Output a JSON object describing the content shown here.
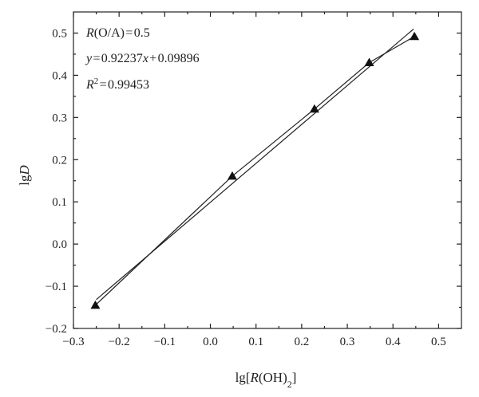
{
  "chart_data": {
    "type": "scatter",
    "xlabel": "lg[R(OH)2]",
    "ylabel": "lgD",
    "xlim": [
      -0.3,
      0.55
    ],
    "ylim": [
      -0.2,
      0.55
    ],
    "x_ticks": [
      -0.3,
      -0.2,
      -0.1,
      0.0,
      0.1,
      0.2,
      0.3,
      0.4,
      0.5
    ],
    "y_ticks": [
      -0.2,
      -0.1,
      0.0,
      0.1,
      0.2,
      0.3,
      0.4,
      0.5
    ],
    "x_tick_labels": [
      "−0.3",
      "−0.2",
      "−0.1",
      "0.0",
      "0.1",
      "0.2",
      "0.3",
      "0.4",
      "0.5"
    ],
    "y_tick_labels": [
      "−0.2",
      "−0.1",
      "0.0",
      "0.1",
      "0.2",
      "0.3",
      "0.4",
      "0.5"
    ],
    "series": [
      {
        "marker": "triangle",
        "x": [
          -0.252,
          0.048,
          0.228,
          0.348,
          0.447
        ],
        "y": [
          -0.145,
          0.161,
          0.32,
          0.43,
          0.492
        ]
      }
    ],
    "fit_line": {
      "slope": 0.92237,
      "intercept": 0.09896,
      "x_range": [
        -0.25,
        0.445
      ]
    },
    "connecting_line": true,
    "grid": false,
    "annotations": {
      "ratio": "R(O/A) = 0.5",
      "equation": "y = 0.92237x + 0.09896",
      "r_squared": "R2 = 0.99453"
    }
  }
}
